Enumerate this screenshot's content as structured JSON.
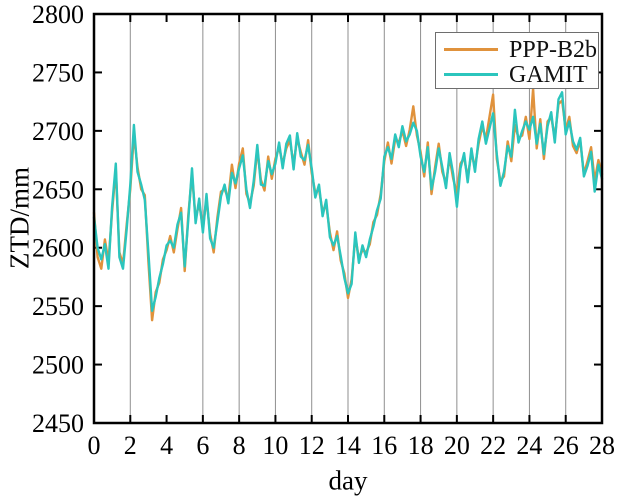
{
  "figure": {
    "background": "#ffffff"
  },
  "chart_data": {
    "type": "line",
    "title": "",
    "xlabel": "day",
    "ylabel": "ZTD/mm",
    "xlim": [
      0,
      28
    ],
    "ylim": [
      2450,
      2800
    ],
    "xticks": [
      0,
      2,
      4,
      6,
      8,
      10,
      12,
      14,
      16,
      18,
      20,
      22,
      24,
      26,
      28
    ],
    "yticks": [
      2450,
      2500,
      2550,
      2600,
      2650,
      2700,
      2750,
      2800
    ],
    "grid": "vertical-only",
    "gridline_days": [
      2,
      6,
      8,
      10,
      12,
      14,
      16,
      18,
      20,
      22,
      24,
      26
    ],
    "grid_color": "#8f8f8f",
    "axis_color": "#000000",
    "legend": {
      "position": "top-right",
      "border_color": "#6e6e6e"
    },
    "x_start": 0,
    "x_step": 0.2,
    "x_unit": "day",
    "y_unit": "mm",
    "series": [
      {
        "name": "PPP-B2b",
        "color": "#E0923C",
        "values": [
          2630,
          2592,
          2582,
          2607,
          2588,
          2631,
          2667,
          2596,
          2586,
          2620,
          2650,
          2697,
          2669,
          2650,
          2645,
          2588,
          2538,
          2562,
          2570,
          2590,
          2598,
          2610,
          2596,
          2616,
          2634,
          2580,
          2628,
          2663,
          2625,
          2638,
          2617,
          2642,
          2612,
          2596,
          2626,
          2648,
          2650,
          2642,
          2671,
          2651,
          2672,
          2685,
          2646,
          2638,
          2653,
          2684,
          2658,
          2649,
          2678,
          2659,
          2676,
          2686,
          2672,
          2685,
          2692,
          2671,
          2694,
          2682,
          2671,
          2692,
          2664,
          2647,
          2650,
          2631,
          2637,
          2613,
          2598,
          2614,
          2589,
          2578,
          2557,
          2573,
          2609,
          2591,
          2598,
          2596,
          2603,
          2622,
          2628,
          2646,
          2674,
          2690,
          2672,
          2693,
          2690,
          2700,
          2687,
          2701,
          2721,
          2696,
          2682,
          2661,
          2690,
          2646,
          2669,
          2689,
          2665,
          2655,
          2677,
          2659,
          2647,
          2672,
          2677,
          2660,
          2681,
          2669,
          2689,
          2704,
          2693,
          2712,
          2731,
          2676,
          2657,
          2661,
          2691,
          2674,
          2705,
          2694,
          2696,
          2712,
          2693,
          2736,
          2685,
          2710,
          2676,
          2708,
          2712,
          2694,
          2723,
          2726,
          2701,
          2712,
          2687,
          2681,
          2692,
          2663,
          2674,
          2686,
          2657,
          2675,
          2663
        ]
      },
      {
        "name": "GAMIT",
        "color": "#2BC5BD",
        "values": [
          2626,
          2600,
          2590,
          2603,
          2582,
          2635,
          2672,
          2592,
          2582,
          2616,
          2654,
          2705,
          2665,
          2654,
          2641,
          2596,
          2546,
          2558,
          2574,
          2586,
          2602,
          2606,
          2600,
          2620,
          2630,
          2584,
          2624,
          2668,
          2621,
          2642,
          2613,
          2646,
          2608,
          2600,
          2622,
          2644,
          2654,
          2638,
          2664,
          2655,
          2668,
          2679,
          2650,
          2634,
          2657,
          2688,
          2654,
          2653,
          2674,
          2663,
          2672,
          2690,
          2668,
          2689,
          2696,
          2667,
          2698,
          2678,
          2675,
          2688,
          2668,
          2643,
          2654,
          2627,
          2641,
          2609,
          2602,
          2610,
          2593,
          2574,
          2561,
          2569,
          2613,
          2587,
          2602,
          2592,
          2607,
          2618,
          2632,
          2642,
          2678,
          2686,
          2676,
          2697,
          2686,
          2704,
          2691,
          2697,
          2707,
          2700,
          2678,
          2665,
          2686,
          2650,
          2665,
          2685,
          2669,
          2651,
          2681,
          2663,
          2635,
          2668,
          2681,
          2656,
          2685,
          2665,
          2693,
          2708,
          2689,
          2702,
          2715,
          2680,
          2653,
          2665,
          2687,
          2678,
          2718,
          2690,
          2700,
          2708,
          2701,
          2712,
          2689,
          2706,
          2680,
          2704,
          2716,
          2690,
          2727,
          2733,
          2697,
          2708,
          2691,
          2684,
          2694,
          2661,
          2670,
          2682,
          2648,
          2671,
          2659
        ]
      }
    ]
  }
}
